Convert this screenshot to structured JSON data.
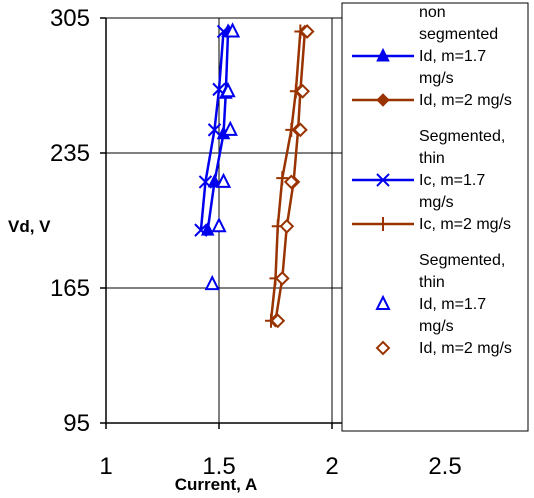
{
  "chart_data": {
    "type": "scatter",
    "title": "",
    "xlabel": "Current, A",
    "ylabel": "Vd, V",
    "xlim": [
      1,
      2.5
    ],
    "ylim": [
      95,
      305
    ],
    "x_ticks": [
      "1",
      "1.5",
      "2",
      "2.5"
    ],
    "y_ticks": [
      "305",
      "235",
      "165",
      "95"
    ],
    "x_tick_values": [
      1,
      1.5,
      2,
      2.5
    ],
    "y_tick_values": [
      305,
      235,
      165,
      95
    ],
    "grid": true,
    "legend_position": "right",
    "legend_headers": [
      [
        "non",
        "segmented"
      ],
      [
        "Segmented,",
        "thin"
      ],
      [
        "Segmented,",
        "thin"
      ]
    ],
    "series": [
      {
        "name": "Id, m=1.7 mg/s",
        "legend_lines": [
          "Id, m=1.7",
          "mg/s"
        ],
        "group": 0,
        "marker": "triangle-filled",
        "line": true,
        "color": "#0000EE",
        "points": [
          [
            1.45,
            195
          ],
          [
            1.48,
            220
          ],
          [
            1.52,
            245
          ],
          [
            1.53,
            266
          ],
          [
            1.54,
            298
          ]
        ]
      },
      {
        "name": "Id, m=2 mg/s",
        "legend_lines": [
          "Id, m=2 mg/s"
        ],
        "group": 0,
        "marker": "diamond-filled",
        "line": true,
        "color": "#993300",
        "points": [
          [
            1.75,
            148
          ],
          [
            1.78,
            170
          ],
          [
            1.8,
            197
          ],
          [
            1.83,
            220
          ],
          [
            1.85,
            247
          ],
          [
            1.86,
            267
          ],
          [
            1.88,
            298
          ]
        ]
      },
      {
        "name": "Ic, m=1.7 mg/s",
        "legend_lines": [
          "Ic, m=1.7",
          "mg/s"
        ],
        "group": 1,
        "marker": "x",
        "line": true,
        "color": "#0000EE",
        "points": [
          [
            1.42,
            195
          ],
          [
            1.44,
            220
          ],
          [
            1.48,
            247
          ],
          [
            1.5,
            268
          ],
          [
            1.52,
            298
          ]
        ]
      },
      {
        "name": "Ic, m=2 mg/s",
        "legend_lines": [
          "Ic, m=2 mg/s"
        ],
        "group": 1,
        "marker": "plus",
        "line": true,
        "color": "#993300",
        "points": [
          [
            1.73,
            148
          ],
          [
            1.75,
            170
          ],
          [
            1.76,
            197
          ],
          [
            1.78,
            222
          ],
          [
            1.82,
            247
          ],
          [
            1.84,
            267
          ],
          [
            1.86,
            298
          ]
        ]
      },
      {
        "name": "Id, m=1.7 mg/s",
        "legend_lines": [
          "Id, m=1.7",
          "mg/s"
        ],
        "group": 2,
        "marker": "triangle-open",
        "line": false,
        "color": "#0000EE",
        "points": [
          [
            1.47,
            167
          ],
          [
            1.5,
            197
          ],
          [
            1.52,
            220
          ],
          [
            1.55,
            247
          ],
          [
            1.54,
            267
          ],
          [
            1.56,
            298
          ]
        ]
      },
      {
        "name": "Id, m=2 mg/s",
        "legend_lines": [
          "Id, m=2 mg/s"
        ],
        "group": 2,
        "marker": "diamond-open",
        "line": false,
        "color": "#993300",
        "points": [
          [
            1.76,
            148
          ],
          [
            1.78,
            170
          ],
          [
            1.8,
            197
          ],
          [
            1.82,
            220
          ],
          [
            1.86,
            247
          ],
          [
            1.87,
            267
          ],
          [
            1.89,
            298
          ]
        ]
      }
    ]
  }
}
